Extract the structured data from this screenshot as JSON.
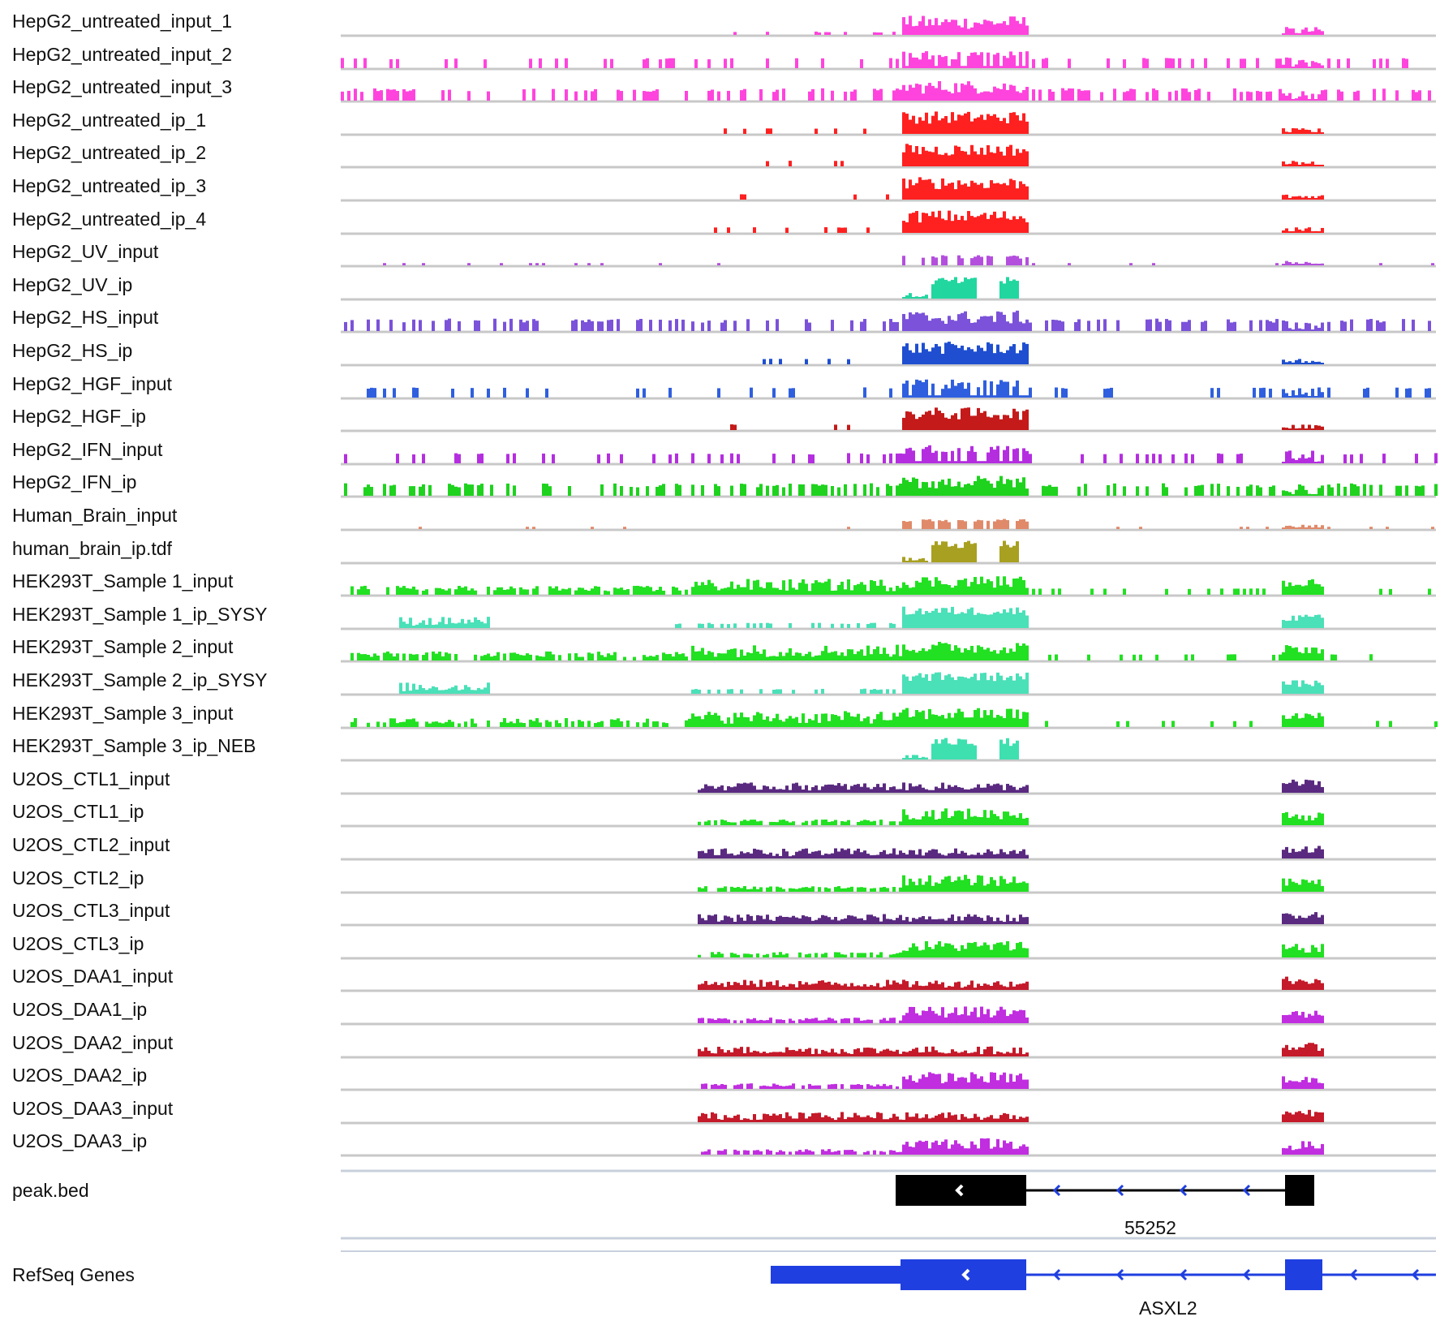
{
  "tracks": [
    {
      "label": "HepG2_untreated_input_1",
      "color": "#ff44dd",
      "profile": "sparse_peak"
    },
    {
      "label": "HepG2_untreated_input_2",
      "color": "#ff44dd",
      "profile": "noisy_peak"
    },
    {
      "label": "HepG2_untreated_input_3",
      "color": "#ff44dd",
      "profile": "noisy_wide"
    },
    {
      "label": "HepG2_untreated_ip_1",
      "color": "#ff2020",
      "profile": "ip_strong"
    },
    {
      "label": "HepG2_untreated_ip_2",
      "color": "#ff2020",
      "profile": "ip_strong"
    },
    {
      "label": "HepG2_untreated_ip_3",
      "color": "#ff2020",
      "profile": "ip_strong"
    },
    {
      "label": "HepG2_untreated_ip_4",
      "color": "#ff2020",
      "profile": "ip_strong"
    },
    {
      "label": "HepG2_UV_input",
      "color": "#b44fdd",
      "profile": "faint"
    },
    {
      "label": "HepG2_UV_ip",
      "color": "#22d6a0",
      "profile": "ip_blocks"
    },
    {
      "label": "HepG2_HS_input",
      "color": "#7b52d9",
      "profile": "noisy_wide"
    },
    {
      "label": "HepG2_HS_ip",
      "color": "#1f4fd0",
      "profile": "ip_strong"
    },
    {
      "label": "HepG2_HGF_input",
      "color": "#2f5fdf",
      "profile": "noisy_peak"
    },
    {
      "label": "HepG2_HGF_ip",
      "color": "#c41a1a",
      "profile": "ip_strong"
    },
    {
      "label": "HepG2_IFN_input",
      "color": "#b42ee0",
      "profile": "noisy_peak"
    },
    {
      "label": "HepG2_IFN_ip",
      "color": "#1ed21e",
      "profile": "noisy_wide"
    },
    {
      "label": "Human_Brain_input",
      "color": "#e08a6a",
      "profile": "faint"
    },
    {
      "label": "human_brain_ip.tdf",
      "color": "#a8a020",
      "profile": "ip_blocks"
    },
    {
      "label": "HEK293T_Sample 1_input",
      "color": "#22e022",
      "profile": "broad"
    },
    {
      "label": "HEK293T_Sample 1_ip_SYSY",
      "color": "#4ae0b8",
      "profile": "hek_ip"
    },
    {
      "label": "HEK293T_Sample 2_input",
      "color": "#22e022",
      "profile": "broad"
    },
    {
      "label": "HEK293T_Sample 2_ip_SYSY",
      "color": "#4ae0b8",
      "profile": "hek_ip"
    },
    {
      "label": "HEK293T_Sample 3_input",
      "color": "#22e022",
      "profile": "broad"
    },
    {
      "label": "HEK293T_Sample 3_ip_NEB",
      "color": "#3ee0b0",
      "profile": "ip_blocks"
    },
    {
      "label": "U2OS_CTL1_input",
      "color": "#5a2a80",
      "profile": "u2os"
    },
    {
      "label": "U2OS_CTL1_ip",
      "color": "#22e022",
      "profile": "u2os_ip"
    },
    {
      "label": "U2OS_CTL2_input",
      "color": "#5a2a80",
      "profile": "u2os"
    },
    {
      "label": "U2OS_CTL2_ip",
      "color": "#22e022",
      "profile": "u2os_ip"
    },
    {
      "label": "U2OS_CTL3_input",
      "color": "#5a2a80",
      "profile": "u2os"
    },
    {
      "label": "U2OS_CTL3_ip",
      "color": "#22e022",
      "profile": "u2os_ip"
    },
    {
      "label": "U2OS_DAA1_input",
      "color": "#c41a2a",
      "profile": "u2os"
    },
    {
      "label": "U2OS_DAA1_ip",
      "color": "#c02ee0",
      "profile": "u2os_ip"
    },
    {
      "label": "U2OS_DAA2_input",
      "color": "#c41a2a",
      "profile": "u2os"
    },
    {
      "label": "U2OS_DAA2_ip",
      "color": "#c02ee0",
      "profile": "u2os_ip"
    },
    {
      "label": "U2OS_DAA3_input",
      "color": "#c41a2a",
      "profile": "u2os"
    },
    {
      "label": "U2OS_DAA3_ip",
      "color": "#c02ee0",
      "profile": "u2os_ip"
    }
  ],
  "feature_tracks": [
    {
      "label": "peak.bed",
      "feature_name": "55252",
      "color": "#000000",
      "intron_color": "#000000"
    },
    {
      "label": "RefSeq Genes",
      "feature_name": "ASXL2",
      "color": "#1f3fe0",
      "intron_color": "#1f3fe0"
    }
  ],
  "colors": {
    "baseline": "#c8c8c8",
    "separator": "#c8d0dc",
    "strand_arrow": "#1f3fe0",
    "exon_chevron": "#ffffff"
  }
}
